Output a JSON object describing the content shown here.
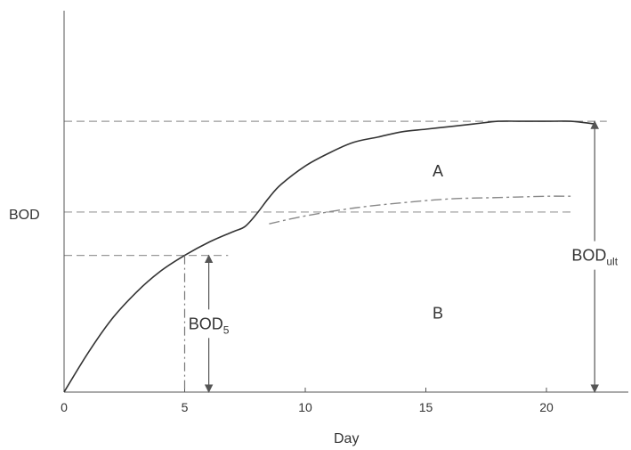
{
  "chart_data": {
    "type": "line",
    "title": "",
    "xlabel": "Day",
    "ylabel": "BOD",
    "xlim": [
      0,
      23
    ],
    "ylim": [
      0,
      1.05
    ],
    "x_ticks": [
      0,
      5,
      10,
      15,
      20
    ],
    "grid": false,
    "legend": "none",
    "series": [
      {
        "style": "solid",
        "color": "#333333",
        "points": [
          [
            0,
            0
          ],
          [
            1,
            0.15
          ],
          [
            2,
            0.28
          ],
          [
            3,
            0.38
          ],
          [
            4,
            0.46
          ],
          [
            5,
            0.52
          ],
          [
            6,
            0.57
          ],
          [
            7,
            0.61
          ],
          [
            7.5,
            0.63
          ],
          [
            8,
            0.68
          ],
          [
            8.5,
            0.74
          ],
          [
            9,
            0.79
          ],
          [
            10,
            0.86
          ],
          [
            11,
            0.91
          ],
          [
            12,
            0.95
          ],
          [
            13,
            0.97
          ],
          [
            14,
            0.99
          ],
          [
            15,
            1.0
          ],
          [
            16,
            1.01
          ],
          [
            17,
            1.02
          ],
          [
            18,
            1.03
          ],
          [
            19,
            1.03
          ],
          [
            20,
            1.03
          ],
          [
            21,
            1.03
          ],
          [
            22,
            1.02
          ]
        ]
      },
      {
        "style": "dashed",
        "color": "#888888",
        "points": [
          [
            8.5,
            0.64
          ],
          [
            10,
            0.67
          ],
          [
            12,
            0.7
          ],
          [
            14,
            0.72
          ],
          [
            16,
            0.735
          ],
          [
            18,
            0.74
          ],
          [
            20,
            0.745
          ],
          [
            21,
            0.745
          ]
        ]
      }
    ],
    "reference_lines": [
      {
        "y": 1.03,
        "x_end": 22.5
      },
      {
        "y": 0.685,
        "x_end": 21
      },
      {
        "y": 0.52,
        "x_end": 6.8
      }
    ],
    "vertical_marker": {
      "x": 5,
      "y_top": 0.52
    },
    "annotations": [
      {
        "id": "region-a",
        "text": "A",
        "x": 15.5,
        "y": 0.82
      },
      {
        "id": "region-b",
        "text": "B",
        "x": 15.5,
        "y": 0.28
      },
      {
        "id": "bod5",
        "text": "BOD",
        "subscript": "5",
        "x": 6,
        "y": 0.26,
        "arrow": {
          "x": 6,
          "y_from": 0,
          "y_to": 0.52
        }
      },
      {
        "id": "bodult",
        "text": "BOD",
        "subscript": "ult",
        "x": 22,
        "y": 0.52,
        "arrow": {
          "x": 22,
          "y_from": 0,
          "y_to": 1.03
        }
      }
    ]
  }
}
